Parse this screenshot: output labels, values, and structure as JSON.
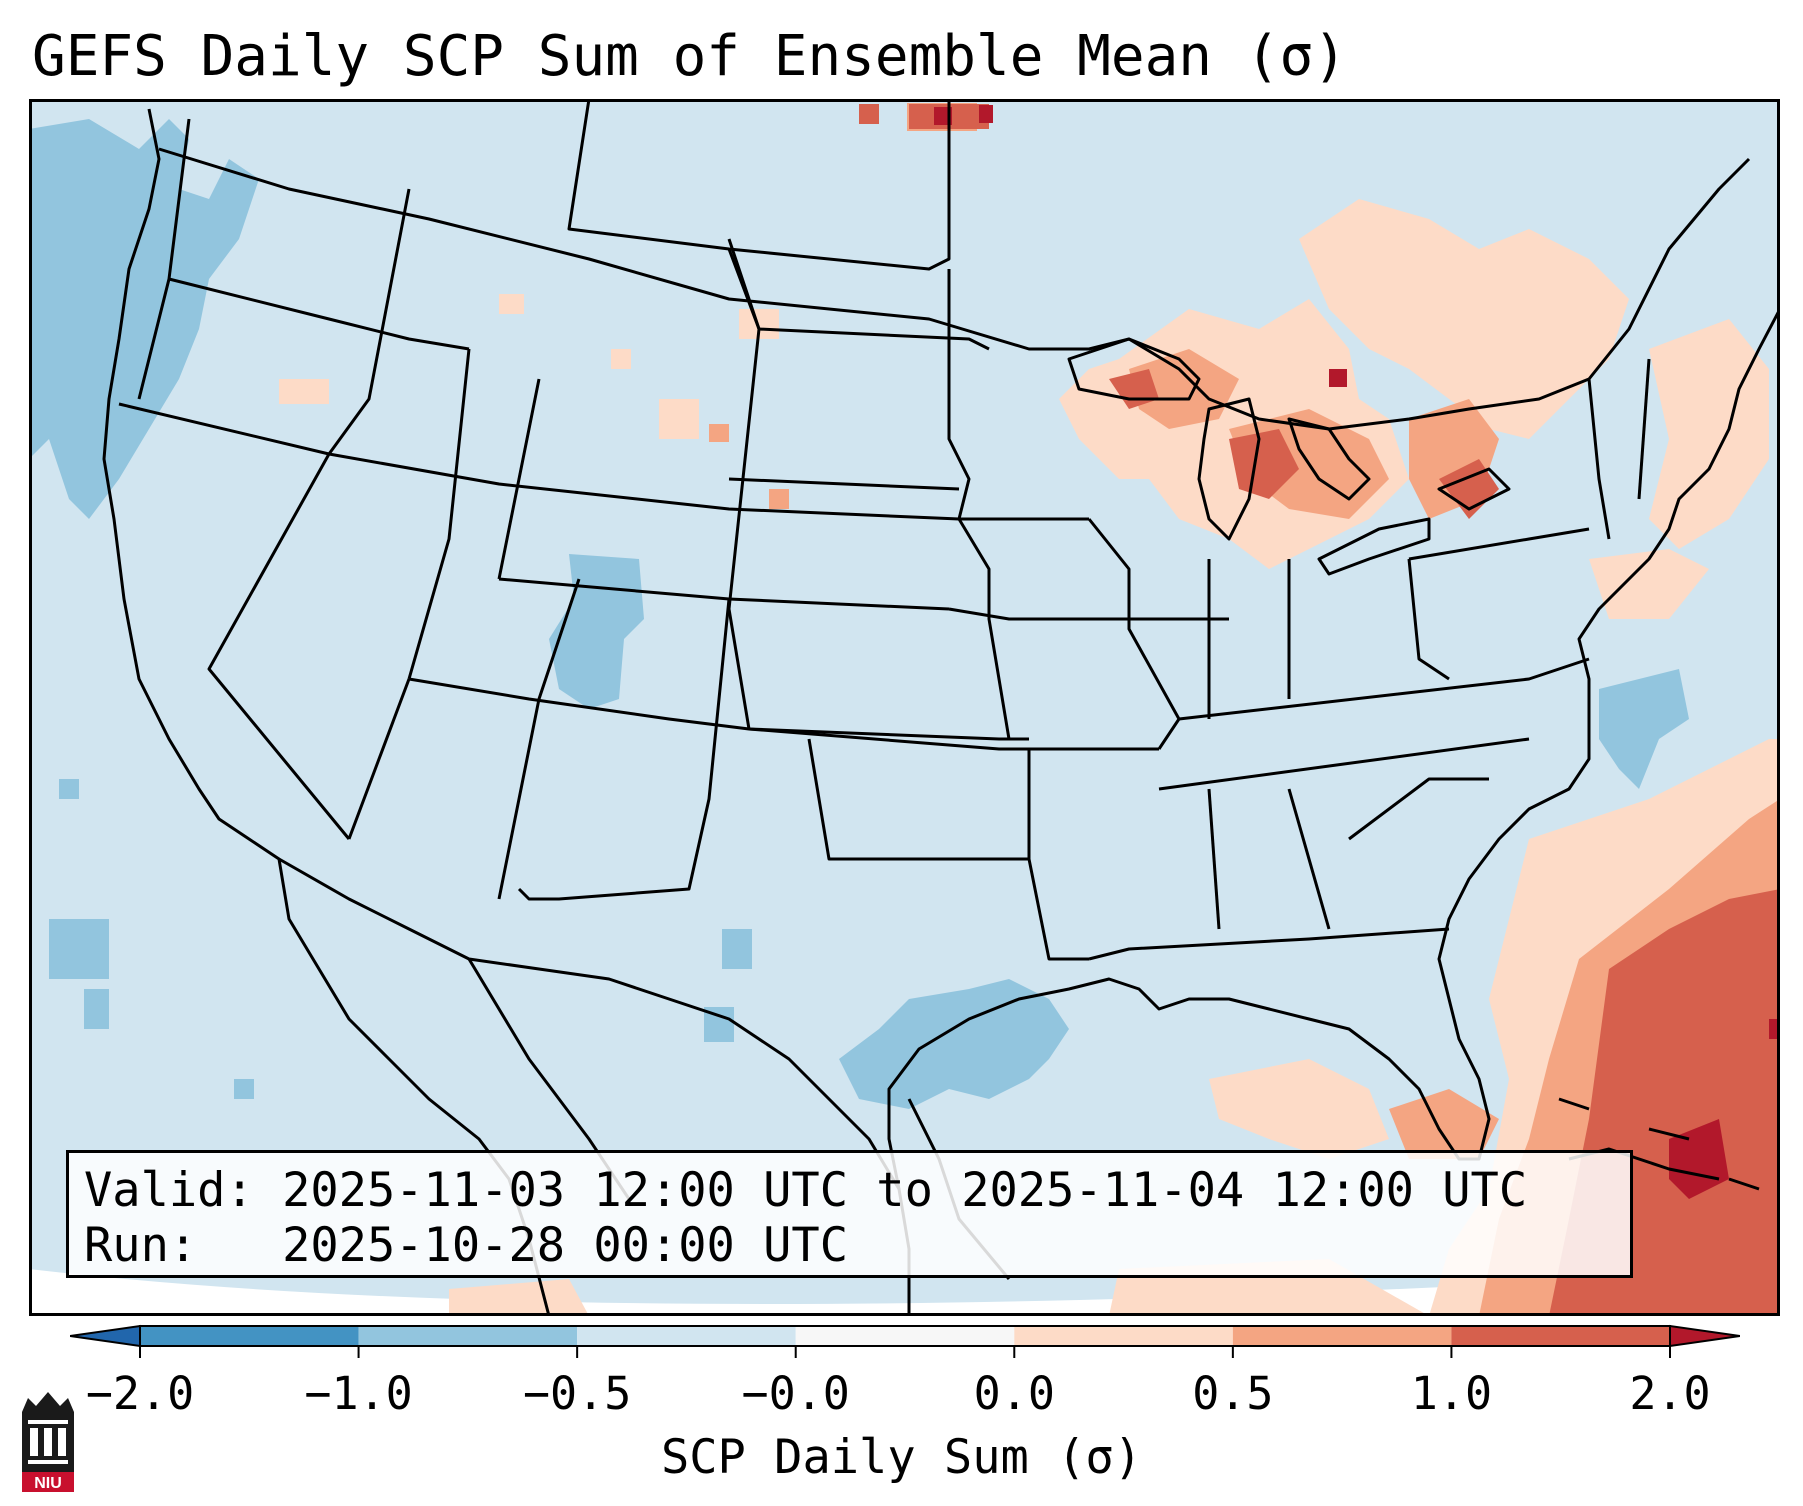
{
  "title": "GEFS Daily SCP Sum of Ensemble Mean (σ)",
  "info": {
    "valid_label": "Valid:",
    "valid_value": "2025-11-03 12:00 UTC to 2025-11-04 12:00 UTC",
    "run_label": "Run:",
    "run_value": "2025-10-28 00:00 UTC"
  },
  "colorbar": {
    "label": "SCP Daily Sum (σ)",
    "ticks": [
      "−2.0",
      "−1.0",
      "−0.5",
      "−0.0",
      "0.0",
      "0.5",
      "1.0",
      "2.0"
    ],
    "colors": [
      "#4393c3",
      "#92c5de",
      "#d1e5f0",
      "#f7f7f7",
      "#fddbc7",
      "#f4a582",
      "#d6604d",
      "#b2182b"
    ],
    "extend": "both"
  },
  "logo": {
    "text": "NIU",
    "icon": "university-tower-icon"
  },
  "map": {
    "projection": "lambert-conformal",
    "region": "Continental United States",
    "background_color": "#d1e5f0",
    "features": [
      "coastlines",
      "country-borders",
      "state-borders"
    ]
  }
}
